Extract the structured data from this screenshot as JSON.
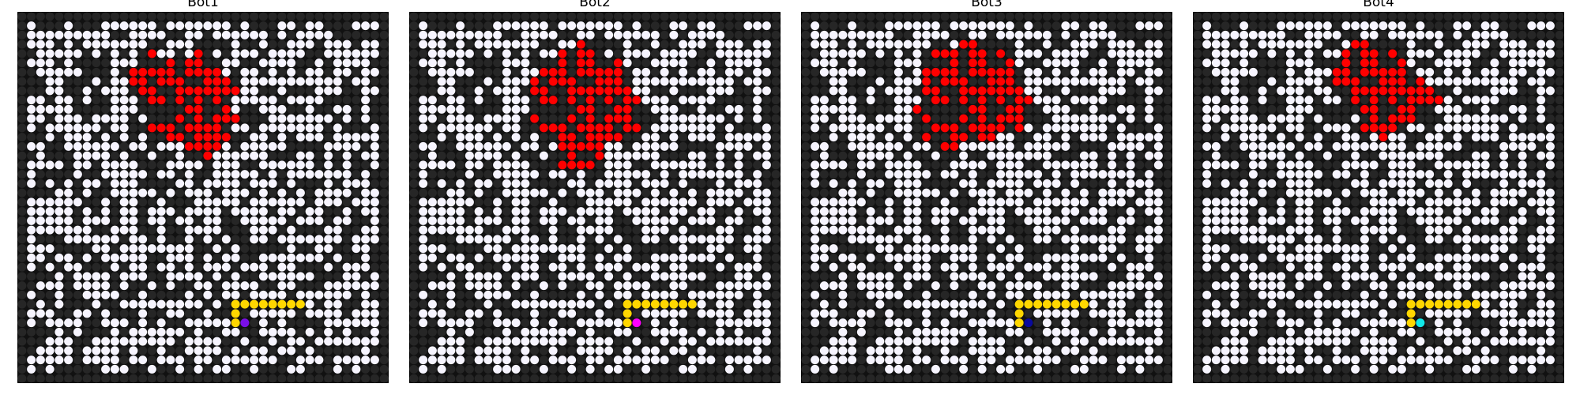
{
  "colors": {
    "open": "#f6f4fe",
    "closed": "#262626",
    "fire": "#ff0000",
    "path": "#ffd700",
    "frame": "#000000"
  },
  "panels": [
    {
      "title": "Bot1",
      "bot_color": "#7a0fe6"
    },
    {
      "title": "Bot2",
      "bot_color": "#ff00ff"
    },
    {
      "title": "Bot3",
      "bot_color": "#0a0a9c"
    },
    {
      "title": "Bot4",
      "bot_color": "#12e8e8"
    }
  ]
}
